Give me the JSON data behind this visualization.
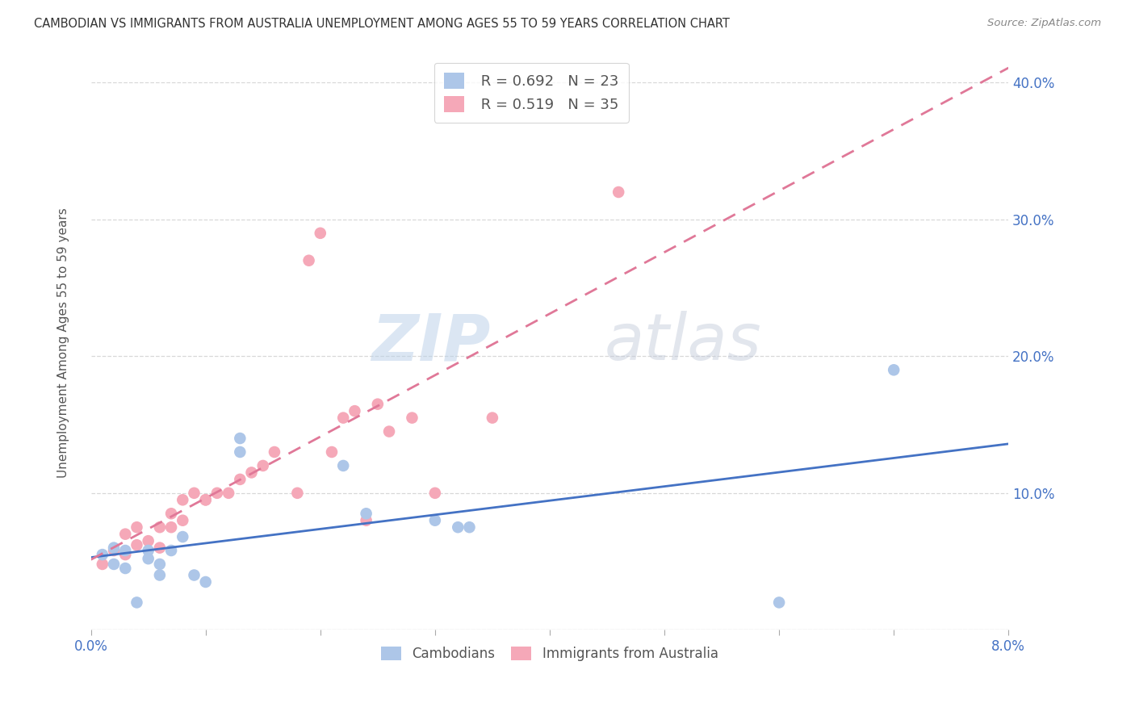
{
  "title": "CAMBODIAN VS IMMIGRANTS FROM AUSTRALIA UNEMPLOYMENT AMONG AGES 55 TO 59 YEARS CORRELATION CHART",
  "source": "Source: ZipAtlas.com",
  "ylabel": "Unemployment Among Ages 55 to 59 years",
  "xlim": [
    0,
    0.08
  ],
  "ylim": [
    0,
    0.42
  ],
  "cambodians_x": [
    0.001,
    0.002,
    0.002,
    0.003,
    0.003,
    0.004,
    0.005,
    0.005,
    0.006,
    0.006,
    0.007,
    0.008,
    0.009,
    0.01,
    0.013,
    0.013,
    0.022,
    0.024,
    0.03,
    0.032,
    0.033,
    0.06,
    0.07
  ],
  "cambodians_y": [
    0.055,
    0.048,
    0.06,
    0.045,
    0.058,
    0.02,
    0.052,
    0.058,
    0.048,
    0.04,
    0.058,
    0.068,
    0.04,
    0.035,
    0.14,
    0.13,
    0.12,
    0.085,
    0.08,
    0.075,
    0.075,
    0.02,
    0.19
  ],
  "australia_x": [
    0.001,
    0.002,
    0.003,
    0.003,
    0.004,
    0.004,
    0.005,
    0.006,
    0.006,
    0.007,
    0.007,
    0.008,
    0.008,
    0.009,
    0.01,
    0.01,
    0.011,
    0.012,
    0.013,
    0.014,
    0.015,
    0.016,
    0.018,
    0.019,
    0.02,
    0.021,
    0.022,
    0.023,
    0.024,
    0.025,
    0.026,
    0.028,
    0.03,
    0.035,
    0.046
  ],
  "australia_y": [
    0.048,
    0.058,
    0.055,
    0.07,
    0.062,
    0.075,
    0.065,
    0.06,
    0.075,
    0.075,
    0.085,
    0.08,
    0.095,
    0.1,
    0.095,
    0.095,
    0.1,
    0.1,
    0.11,
    0.115,
    0.12,
    0.13,
    0.1,
    0.27,
    0.29,
    0.13,
    0.155,
    0.16,
    0.08,
    0.165,
    0.145,
    0.155,
    0.1,
    0.155,
    0.32
  ],
  "cambodians_color": "#adc6e8",
  "australia_color": "#f5a8b8",
  "cambodians_line_color": "#4472c4",
  "australia_line_color": "#e07898",
  "R_cambodians": 0.692,
  "N_cambodians": 23,
  "R_australia": 0.519,
  "N_australia": 35,
  "legend_labels": [
    "Cambodians",
    "Immigrants from Australia"
  ],
  "watermark_zip": "ZIP",
  "watermark_atlas": "atlas",
  "background_color": "#ffffff",
  "grid_color": "#d8d8d8"
}
